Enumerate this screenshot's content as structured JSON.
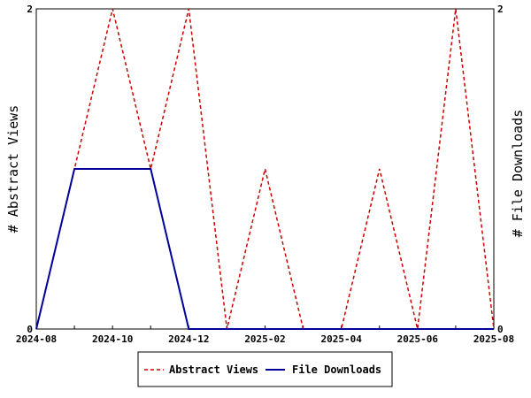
{
  "chart_data": {
    "type": "line",
    "x": [
      "2024-08",
      "2024-09",
      "2024-10",
      "2024-11",
      "2024-12",
      "2025-01",
      "2025-02",
      "2025-03",
      "2025-04",
      "2025-05",
      "2025-06",
      "2025-07",
      "2025-08"
    ],
    "x_ticks": [
      "2024-08",
      "2024-10",
      "2024-12",
      "2025-02",
      "2025-04",
      "2025-06",
      "2025-08"
    ],
    "series": [
      {
        "name": "Abstract Views",
        "axis": "left",
        "color": "#cc0000",
        "dash": true,
        "values": [
          0,
          1,
          2,
          1,
          2,
          0,
          1,
          0,
          0,
          1,
          0,
          2,
          0
        ]
      },
      {
        "name": "File Downloads",
        "axis": "right",
        "color": "#000099",
        "dash": false,
        "values": [
          0,
          1,
          1,
          1,
          0,
          0,
          0,
          0,
          0,
          0,
          0,
          0,
          0
        ]
      }
    ],
    "ylabel_left": "# Abstract Views",
    "ylabel_right": "# File Downloads",
    "ylim_left": [
      0,
      2
    ],
    "ylim_right": [
      0,
      2
    ],
    "y_ticks_left": [
      0,
      2
    ],
    "y_ticks_right": [
      0,
      2
    ],
    "grid": false,
    "legend_position": "bottom"
  }
}
